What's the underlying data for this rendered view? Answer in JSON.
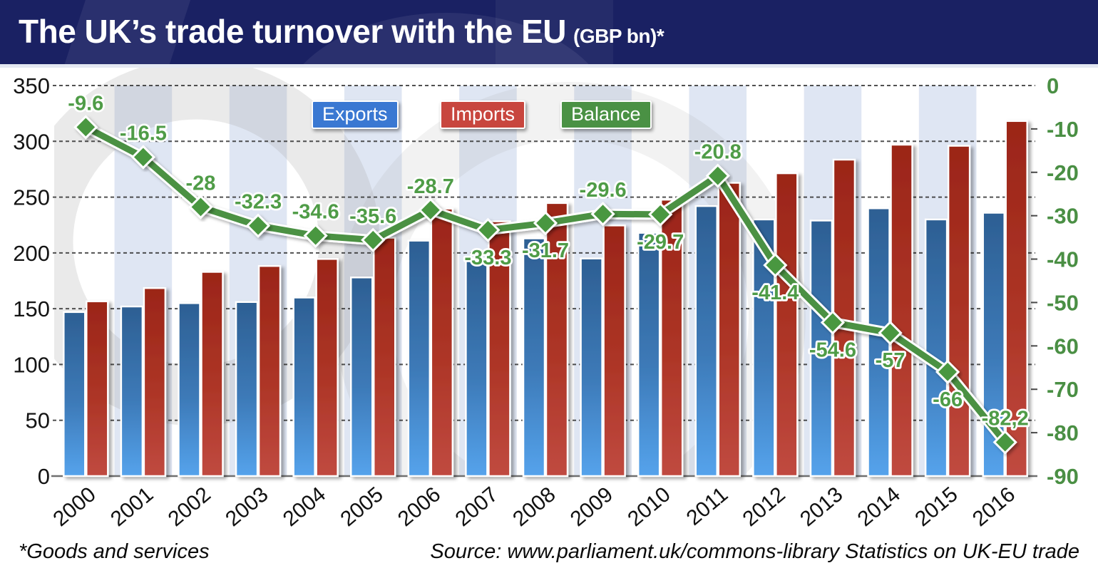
{
  "header": {
    "title": "The UK’s trade turnover with the EU",
    "subtitle": "(GBP bn)*",
    "bg_color": "#1a2163"
  },
  "legend": [
    {
      "label": "Exports",
      "color": "#3a78d2"
    },
    {
      "label": "Imports",
      "color": "#c8463e"
    },
    {
      "label": "Balance",
      "color": "#4a9144"
    }
  ],
  "footer": {
    "note": "*Goods and services",
    "source": "Source: www.parliament.uk/commons-library Statistics on UK-EU trade"
  },
  "chart_data": {
    "type": "bar",
    "title": "The UK’s trade turnover with the EU (GBP bn)",
    "categories": [
      "2000",
      "2001",
      "2002",
      "2003",
      "2004",
      "2005",
      "2006",
      "2007",
      "2008",
      "2009",
      "2010",
      "2011",
      "2012",
      "2013",
      "2014",
      "2015",
      "2016"
    ],
    "series": [
      {
        "name": "Exports",
        "type": "bar",
        "axis": "left",
        "values": [
          147,
          152,
          155,
          156,
          160,
          178,
          211,
          195,
          213,
          195,
          218,
          242,
          230,
          229,
          240,
          230,
          236
        ]
      },
      {
        "name": "Imports",
        "type": "bar",
        "axis": "left",
        "values": [
          156.6,
          168.5,
          183,
          188.3,
          194.6,
          213.6,
          239.7,
          228.3,
          244.7,
          224.6,
          247.7,
          262.8,
          271.4,
          283.6,
          297,
          296,
          318.2
        ]
      },
      {
        "name": "Balance",
        "type": "line",
        "axis": "right",
        "values": [
          -9.6,
          -16.5,
          -28,
          -32.3,
          -34.6,
          -35.6,
          -28.7,
          -33.3,
          -31.7,
          -29.6,
          -29.7,
          -20.8,
          -41.4,
          -54.6,
          -57,
          -66,
          -82.2
        ]
      }
    ],
    "balance_labels": [
      "-9.6",
      "-16.5",
      "-28",
      "-32.3",
      "-34.6",
      "-35.6",
      "-28.7",
      "-33.3",
      "-31.7",
      "-29.6",
      "-29.7",
      "-20.8",
      "-41.4",
      "-54.6",
      "-57",
      "-66",
      "-82,2"
    ],
    "balance_label_above": [
      true,
      true,
      true,
      true,
      true,
      true,
      true,
      false,
      false,
      true,
      false,
      true,
      false,
      false,
      false,
      false,
      true
    ],
    "left_axis": {
      "min": 0,
      "max": 350,
      "step": 50,
      "ticks": [
        "350",
        "300",
        "250",
        "200",
        "150",
        "100",
        "50",
        "0"
      ]
    },
    "right_axis": {
      "min": -90,
      "max": 0,
      "step": 10,
      "ticks": [
        "0",
        "-10",
        "-20",
        "-30",
        "-40",
        "-50",
        "-60",
        "-70",
        "-80",
        "-90"
      ]
    },
    "grid": "horizontal-dashed",
    "legend_position": "top-center",
    "colors": {
      "exports_bar_top": "#2d5f93",
      "exports_bar_bottom": "#55a3ec",
      "imports_bar_top": "#9b2518",
      "imports_bar_bottom": "#c04a40",
      "balance_line": "#4b9143",
      "balance_marker": "#48973f",
      "balance_label_text": "#4f9c47",
      "right_axis_text": "#4a8f44",
      "left_axis_text": "#141414",
      "background_stripe": "#dbe3f2",
      "gridline": "#333333"
    }
  }
}
